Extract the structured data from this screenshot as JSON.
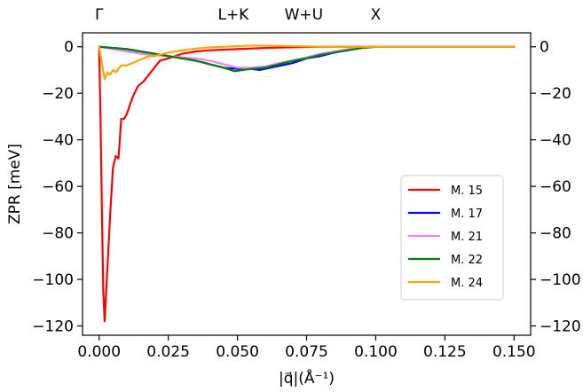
{
  "chart_data": {
    "type": "line",
    "xlabel": "|q⃗|(Å⁻¹)",
    "ylabel": "ZPR [meV]",
    "xlim": [
      -0.006,
      0.156
    ],
    "ylim": [
      -124,
      6
    ],
    "x_ticks": [
      0.0,
      0.025,
      0.05,
      0.075,
      0.1,
      0.125,
      0.15
    ],
    "x_tick_labels": [
      "0.000",
      "0.025",
      "0.050",
      "0.075",
      "0.100",
      "0.125",
      "0.150"
    ],
    "y_ticks": [
      0,
      -20,
      -40,
      -60,
      -80,
      -100,
      -120
    ],
    "y_tick_labels": [
      "0",
      "−20",
      "−40",
      "−60",
      "−80",
      "−100",
      "−120"
    ],
    "right_axis_ticks_mirrored": true,
    "grid": false,
    "legend_position": "lower-right",
    "high_symmetry_points": [
      {
        "label": "Γ",
        "x": 0.0
      },
      {
        "label": "L+K",
        "x": 0.0485
      },
      {
        "label": "W+U",
        "x": 0.074
      },
      {
        "label": "X",
        "x": 0.1
      }
    ],
    "series": [
      {
        "name": "M. 15",
        "color": "#ff0000",
        "x": [
          0.0,
          0.0005,
          0.001,
          0.0015,
          0.002,
          0.003,
          0.004,
          0.005,
          0.006,
          0.007,
          0.008,
          0.009,
          0.01,
          0.012,
          0.014,
          0.016,
          0.018,
          0.02,
          0.022,
          0.025,
          0.03,
          0.035,
          0.04,
          0.05,
          0.06,
          0.07,
          0.08,
          0.1,
          0.15
        ],
        "y": [
          0,
          -30,
          -70,
          -105,
          -118,
          -95,
          -72,
          -52,
          -47,
          -48,
          -31,
          -31,
          -29,
          -22,
          -17,
          -15,
          -12,
          -9,
          -6,
          -5,
          -3,
          -2,
          -1.5,
          -1,
          -0.5,
          -0.2,
          0,
          0,
          0
        ]
      },
      {
        "name": "M. 17",
        "color": "#0000ff",
        "x": [
          0.0,
          0.005,
          0.01,
          0.015,
          0.02,
          0.025,
          0.03,
          0.035,
          0.04,
          0.045,
          0.05,
          0.055,
          0.058,
          0.062,
          0.066,
          0.07,
          0.075,
          0.08,
          0.085,
          0.09,
          0.095,
          0.1,
          0.11,
          0.15
        ],
        "y": [
          0,
          -0.5,
          -1,
          -2,
          -3,
          -4,
          -5,
          -6,
          -7.5,
          -9,
          -9.5,
          -9.5,
          -10,
          -9,
          -8,
          -7,
          -5,
          -4,
          -2.5,
          -1.5,
          -0.5,
          0,
          0,
          0
        ]
      },
      {
        "name": "M. 21",
        "color": "#ee82ee",
        "x": [
          0.0,
          0.005,
          0.01,
          0.015,
          0.02,
          0.025,
          0.03,
          0.035,
          0.04,
          0.045,
          0.05,
          0.055,
          0.06,
          0.065,
          0.07,
          0.075,
          0.08,
          0.085,
          0.09,
          0.095,
          0.1,
          0.15
        ],
        "y": [
          0,
          -1,
          -2,
          -3,
          -3.5,
          -4,
          -4.5,
          -5,
          -6,
          -7.5,
          -9,
          -9,
          -8.5,
          -7,
          -6,
          -4.5,
          -3,
          -2,
          -1,
          -0.5,
          0,
          0
        ]
      },
      {
        "name": "M. 22",
        "color": "#008000",
        "x": [
          0.0,
          0.005,
          0.01,
          0.015,
          0.02,
          0.025,
          0.03,
          0.035,
          0.04,
          0.045,
          0.049,
          0.052,
          0.055,
          0.06,
          0.065,
          0.07,
          0.075,
          0.08,
          0.085,
          0.09,
          0.095,
          0.1,
          0.15
        ],
        "y": [
          0,
          -0.5,
          -1,
          -2,
          -3,
          -4,
          -5,
          -6,
          -7.5,
          -9,
          -10.5,
          -10,
          -9.5,
          -9,
          -7.5,
          -6,
          -5,
          -3.5,
          -2.5,
          -1.5,
          -0.5,
          0,
          0
        ]
      },
      {
        "name": "M. 24",
        "color": "#ffa500",
        "x": [
          0.0,
          0.001,
          0.002,
          0.003,
          0.004,
          0.005,
          0.006,
          0.008,
          0.01,
          0.012,
          0.014,
          0.016,
          0.018,
          0.02,
          0.025,
          0.03,
          0.035,
          0.04,
          0.045,
          0.05,
          0.055,
          0.06,
          0.07,
          0.08,
          0.1,
          0.15
        ],
        "y": [
          0,
          -7,
          -14,
          -11,
          -12,
          -10,
          -11,
          -8,
          -8,
          -7,
          -6,
          -5,
          -4,
          -4,
          -2.5,
          -1.5,
          -0.8,
          -0.3,
          0,
          0.3,
          0.5,
          0.5,
          0.3,
          0,
          0,
          0
        ]
      }
    ]
  }
}
